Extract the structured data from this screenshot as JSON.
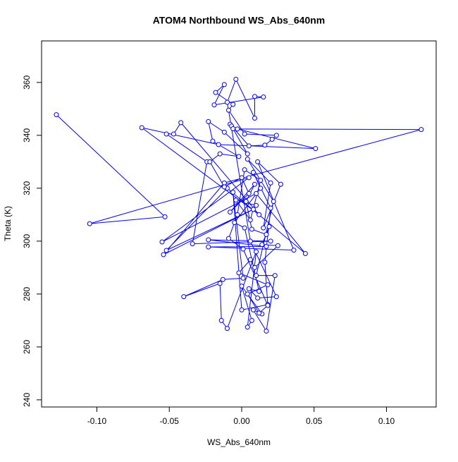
{
  "chart_data": {
    "type": "scatter_line",
    "title": "ATOM4 Northbound WS_Abs_640nm",
    "x_label": "WS_Abs_640nm",
    "y_label": "Theta (K)",
    "color": "#0000ff",
    "xlim": [
      -0.1382,
      0.1343
    ],
    "ylim": [
      237.3,
      375.7
    ],
    "xticks": [
      {
        "value": -0.1,
        "label": "-0.10"
      },
      {
        "value": -0.05,
        "label": "-0.05"
      },
      {
        "value": 0,
        "label": "0.00"
      },
      0.05,
      {
        "value": 0.1,
        "label": "0.10"
      }
    ],
    "yticks": [
      240,
      260,
      280,
      300,
      320,
      340,
      360
    ],
    "series": [
      {
        "name": "ATOM4 Northbound",
        "color": "#0000ff",
        "x": [
          -0.128,
          -0.053,
          -0.105,
          0.005,
          -0.055,
          0.01,
          0.044,
          -0.01,
          -0.052,
          0.008,
          -0.054,
          -0.012,
          0.124,
          -0.003,
          0.051,
          -0.016,
          -0.069,
          0.012,
          -0.042,
          -0.047,
          -0.052,
          -0.024,
          -0.034,
          0.02,
          -0.023,
          0.017,
          -0.023,
          0.036,
          0.011,
          0.027,
          0.015,
          0.02,
          0.004,
          0.022,
          0.01,
          0.023,
          0.017,
          0.008,
          0.014,
          0.0,
          0.007,
          0.004,
          0.01,
          -0.01,
          -0.014,
          -0.015,
          -0.04,
          -0.013,
          0.001,
          -0.006,
          0.0,
          0.018,
          0.016,
          0.02,
          0.008,
          0.013,
          -0.005,
          0.002,
          0.012,
          0.005,
          0.011,
          0.024,
          0.006,
          -0.01,
          -0.004,
          0.009,
          0.009,
          0.015,
          -0.019,
          -0.012,
          -0.018,
          -0.006,
          -0.009,
          0.002,
          0.024,
          0.021,
          0.016,
          0.005,
          -0.008,
          -0.007,
          -0.006,
          0.004,
          -0.012,
          -0.023,
          -0.02,
          -0.002,
          -0.015,
          -0.022,
          -0.012,
          0.0,
          0.005,
          -0.008,
          0.009,
          0.003,
          0.007,
          0.017,
          0.019,
          0.014,
          0.025,
          0.009,
          0.006,
          -0.002,
          0.018,
          0.004,
          0.012,
          0.018,
          0.001,
          -0.009,
          -0.003,
          0.002,
          0.013,
          0.006,
          -0.004,
          0.01
        ],
        "values": [
          347.8,
          309.2,
          306.6,
          324,
          299.7,
          318,
          295.3,
          320,
          296.5,
          312,
          294.9,
          322,
          342.2,
          342.4,
          335,
          336.5,
          342.9,
          310,
          344.8,
          340.5,
          340.5,
          330,
          299,
          300,
          300.5,
          298,
          297.8,
          296.6,
          330,
          321.5,
          305,
          322,
          331,
          315,
          287,
          287,
          266,
          274,
          272.5,
          283,
          270,
          267.5,
          296,
          267,
          270,
          284,
          279,
          285.5,
          286,
          318.5,
          274,
          276,
          292,
          312.5,
          326,
          320,
          307,
          305,
          281,
          282,
          278.5,
          279,
          300,
          352.5,
          361.2,
          346.5,
          354.7,
          354.5,
          351.5,
          359.2,
          356.2,
          351.7,
          349.5,
          340.5,
          340,
          338.5,
          336.3,
          336,
          344.2,
          343.5,
          342.5,
          333,
          341.2,
          345.2,
          337.8,
          332,
          333,
          330,
          320.5,
          324,
          318,
          311,
          321.5,
          315,
          304.5,
          302.5,
          305.5,
          298.7,
          298.3,
          290,
          293,
          288,
          283.5,
          280,
          272.8,
          275.7,
          297,
          301,
          310,
          327,
          323,
          308,
          315.5,
          313.5
        ]
      }
    ]
  }
}
